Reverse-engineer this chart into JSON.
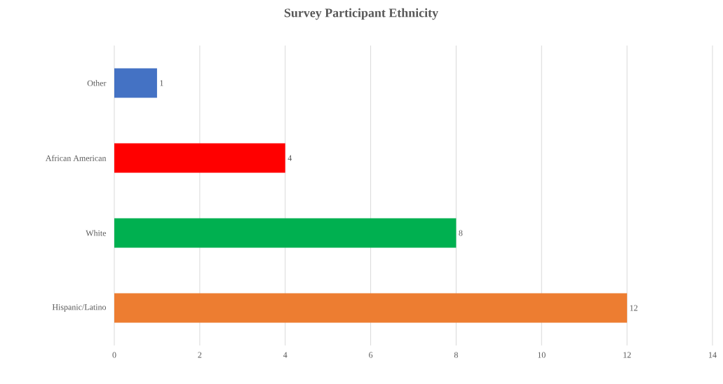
{
  "chart_data": {
    "type": "bar",
    "orientation": "horizontal",
    "title": "Survey Participant Ethnicity",
    "categories": [
      "Other",
      "African American",
      "White",
      "Hispanic/Latino"
    ],
    "values": [
      1,
      4,
      8,
      12
    ],
    "colors": [
      "#4472c4",
      "#ff0000",
      "#00b050",
      "#ed7d31"
    ],
    "xlim": [
      0,
      14
    ],
    "xticks": [
      0,
      2,
      4,
      6,
      8,
      10,
      12,
      14
    ],
    "grid": "x",
    "data_labels": true
  }
}
